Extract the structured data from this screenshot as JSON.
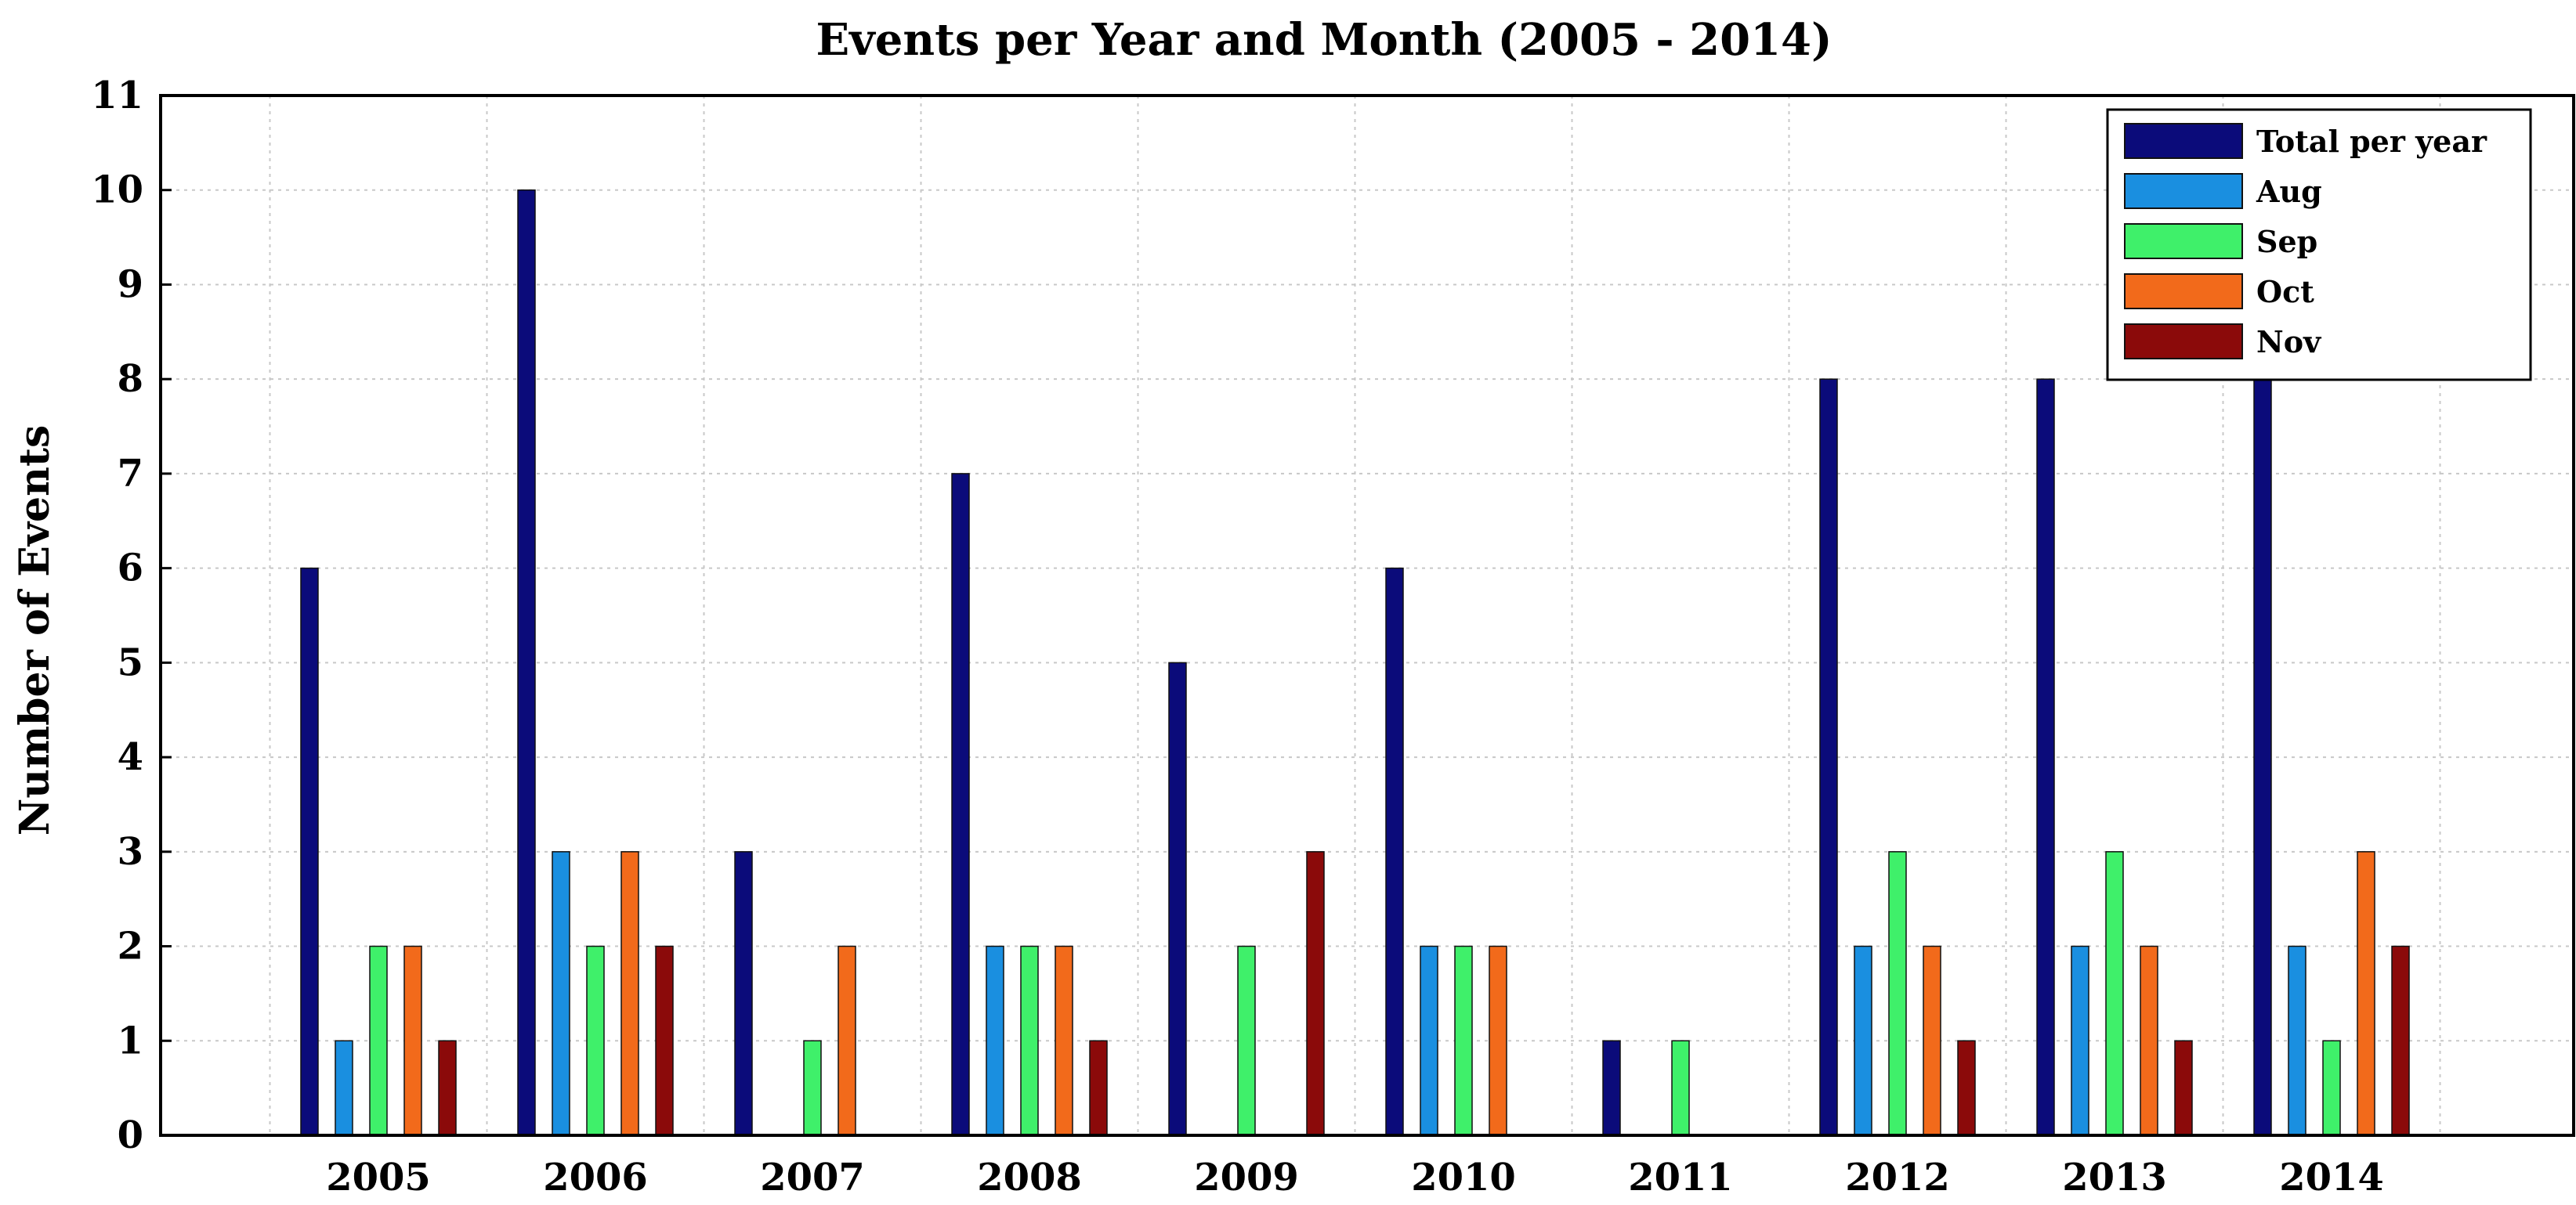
{
  "chart_data": {
    "type": "bar",
    "title": "Events per Year  and Month (2005 - 2014)",
    "xlabel": "",
    "ylabel": "Number of Events",
    "ylim": [
      0,
      11
    ],
    "yticks": [
      "0",
      "1",
      "2",
      "3",
      "4",
      "5",
      "6",
      "7",
      "8",
      "9",
      "10",
      "11"
    ],
    "grid": true,
    "legend_position": "top-right",
    "categories": [
      "2005",
      "2006",
      "2007",
      "2008",
      "2009",
      "2010",
      "2011",
      "2012",
      "2013",
      "2014"
    ],
    "series": [
      {
        "name": "Total per year",
        "color": "#0b0b7a",
        "values": [
          6,
          10,
          3,
          7,
          5,
          6,
          1,
          8,
          8,
          8
        ]
      },
      {
        "name": "Aug",
        "color": "#1a8fe0",
        "values": [
          1,
          3,
          0,
          2,
          0,
          2,
          0,
          2,
          2,
          2
        ]
      },
      {
        "name": "Sep",
        "color": "#3ff06a",
        "values": [
          2,
          2,
          1,
          2,
          2,
          2,
          1,
          3,
          3,
          1
        ]
      },
      {
        "name": "Oct",
        "color": "#f26a1b",
        "values": [
          2,
          3,
          2,
          2,
          0,
          2,
          0,
          2,
          2,
          3
        ]
      },
      {
        "name": "Nov",
        "color": "#8b0a0a",
        "values": [
          1,
          2,
          0,
          1,
          3,
          0,
          0,
          1,
          1,
          2
        ]
      }
    ]
  }
}
